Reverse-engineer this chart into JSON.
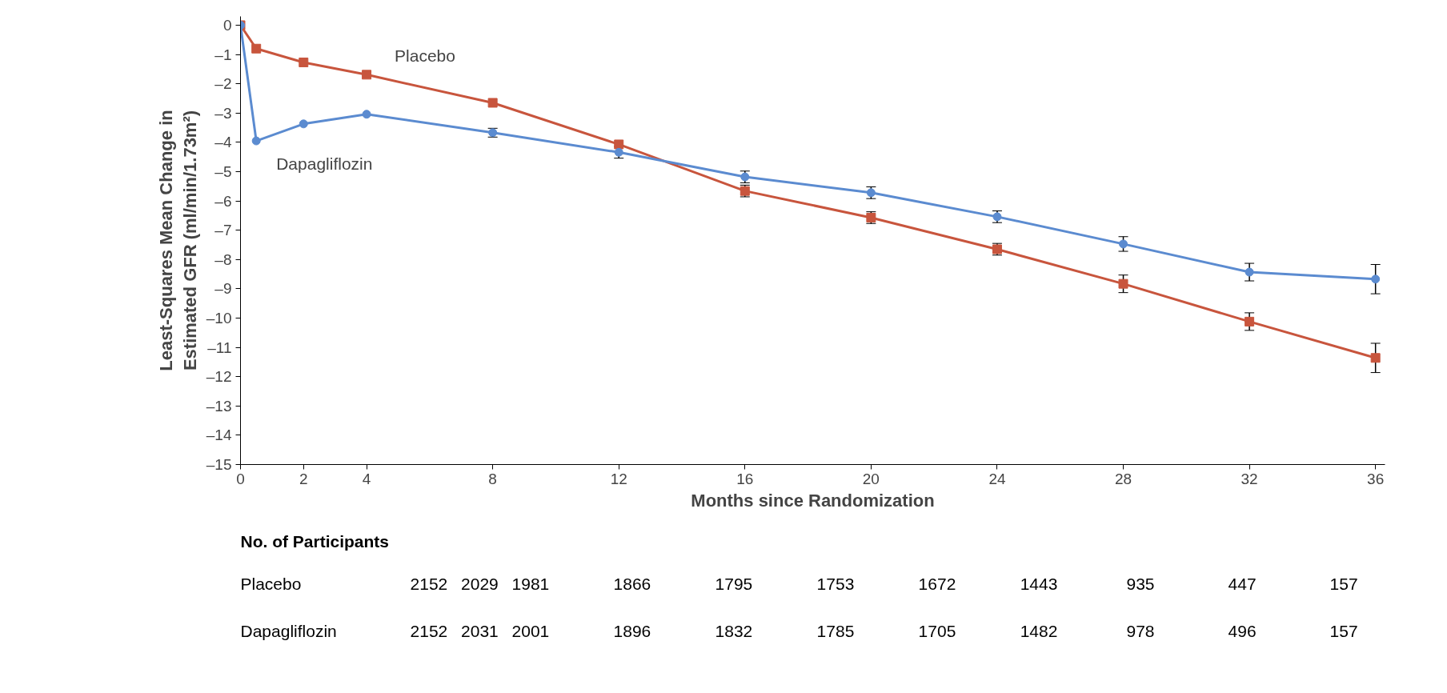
{
  "chart_data": {
    "type": "line",
    "xlabel": "Months since Randomization",
    "ylabel": "Least-Squares Mean Change in\nEstimated GFR (ml/min/1.73m²)",
    "x": [
      0,
      0.5,
      2,
      4,
      8,
      12,
      16,
      20,
      24,
      28,
      32,
      36
    ],
    "series": [
      {
        "name": "Placebo",
        "color": "#c8553d",
        "marker": "square",
        "values": [
          0,
          -0.8,
          -1.27,
          -1.69,
          -2.65,
          -4.07,
          -5.66,
          -6.57,
          -7.65,
          -8.83,
          -10.12,
          -11.36
        ],
        "errors": [
          null,
          null,
          null,
          null,
          null,
          null,
          0.2,
          0.2,
          0.2,
          0.3,
          0.3,
          0.5
        ]
      },
      {
        "name": "Dapagliflozin",
        "color": "#5b8bd0",
        "marker": "circle",
        "values": [
          0,
          -3.95,
          -3.37,
          -3.04,
          -3.67,
          -4.34,
          -5.18,
          -5.72,
          -6.54,
          -7.47,
          -8.43,
          -8.67
        ],
        "errors": [
          null,
          null,
          null,
          null,
          0.15,
          0.2,
          0.2,
          0.2,
          0.2,
          0.25,
          0.3,
          0.5
        ]
      }
    ],
    "xlim": [
      0,
      36.3
    ],
    "ylim": [
      -15,
      0.3
    ],
    "xticks": [
      0,
      2,
      4,
      8,
      12,
      16,
      20,
      24,
      28,
      32,
      36
    ],
    "yticks": [
      {
        "value": 0,
        "label": "0"
      },
      {
        "value": -1,
        "label": "–1"
      },
      {
        "value": -2,
        "label": "–2"
      },
      {
        "value": -3,
        "label": "–3"
      },
      {
        "value": -4,
        "label": "–4"
      },
      {
        "value": -5,
        "label": "–5"
      },
      {
        "value": -6,
        "label": "–6"
      },
      {
        "value": -7,
        "label": "–7"
      },
      {
        "value": -8,
        "label": "–8"
      },
      {
        "value": -9,
        "label": "–9"
      },
      {
        "value": -10,
        "label": "–10"
      },
      {
        "value": -11,
        "label": "–11"
      },
      {
        "value": -12,
        "label": "–12"
      },
      {
        "value": -13,
        "label": "–13"
      },
      {
        "value": -14,
        "label": "–14"
      },
      {
        "value": -15,
        "label": "–15"
      }
    ],
    "grid": false,
    "annotations": [
      "No. of Participants",
      "Placebo",
      "2152",
      "2029",
      "1981",
      "1866",
      "1795",
      "1753",
      "1672",
      "1443",
      "935",
      "447",
      "157",
      "Dapagliflozin",
      "2152",
      "2031",
      "2001",
      "1896",
      "1832",
      "1785",
      "1705",
      "1482",
      "978",
      "496",
      "157"
    ]
  }
}
